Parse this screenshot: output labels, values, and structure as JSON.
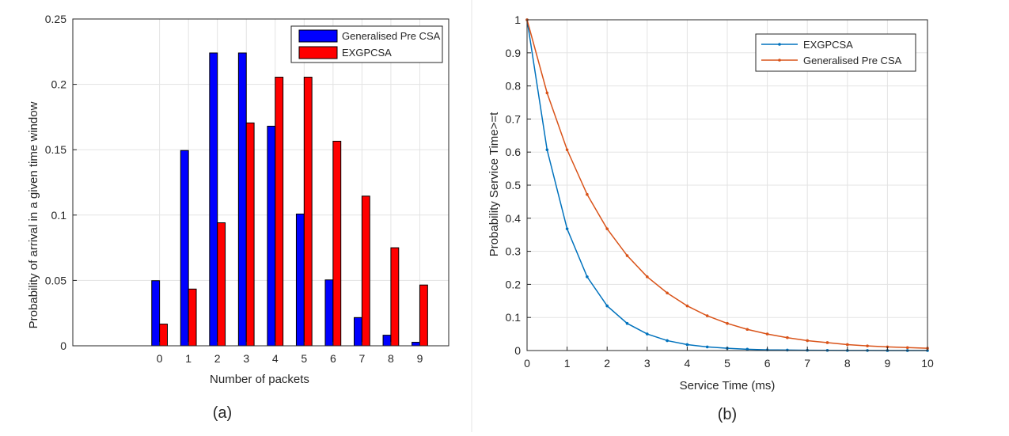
{
  "chart_data": [
    {
      "type": "bar",
      "panel_label": "(a)",
      "xlabel": "Number of packets",
      "ylabel": "Probability of arrival in a given time window",
      "categories": [
        "0",
        "1",
        "2",
        "3",
        "4",
        "5",
        "6",
        "7",
        "8",
        "9"
      ],
      "xlim": [
        -3,
        10
      ],
      "ylim": [
        0,
        0.25
      ],
      "yticks": [
        0,
        0.05,
        0.1,
        0.15,
        0.2,
        0.25
      ],
      "yticklabels": [
        "0",
        "0.05",
        "0.1",
        "0.15",
        "0.2",
        "0.25"
      ],
      "grid": true,
      "legend_position": "top-right",
      "series": [
        {
          "name": "Generalised Pre CSA",
          "color": "#0000ff",
          "values": [
            0.0498,
            0.1494,
            0.224,
            0.224,
            0.168,
            0.1008,
            0.0504,
            0.0216,
            0.0081,
            0.0027
          ]
        },
        {
          "name": "EXGPCSA",
          "color": "#ff0000",
          "values": [
            0.0166,
            0.0434,
            0.0941,
            0.1705,
            0.2055,
            0.2055,
            0.1565,
            0.1145,
            0.075,
            0.0465
          ]
        }
      ]
    },
    {
      "type": "line",
      "panel_label": "(b)",
      "xlabel": "Service Time (ms)",
      "ylabel": "Probability Service Time>=t",
      "xlim": [
        0,
        10
      ],
      "ylim": [
        0,
        1
      ],
      "xticks": [
        0,
        1,
        2,
        3,
        4,
        5,
        6,
        7,
        8,
        9,
        10
      ],
      "xticklabels": [
        "0",
        "1",
        "2",
        "3",
        "4",
        "5",
        "6",
        "7",
        "8",
        "9",
        "10"
      ],
      "yticks": [
        0,
        0.1,
        0.2,
        0.3,
        0.4,
        0.5,
        0.6,
        0.7,
        0.8,
        0.9,
        1
      ],
      "yticklabels": [
        "0",
        "0.1",
        "0.2",
        "0.3",
        "0.4",
        "0.5",
        "0.6",
        "0.7",
        "0.8",
        "0.9",
        "1"
      ],
      "grid": true,
      "legend_position": "top-right",
      "x": [
        0,
        0.5,
        1,
        1.5,
        2,
        2.5,
        3,
        3.5,
        4,
        4.5,
        5,
        5.5,
        6,
        6.5,
        7,
        7.5,
        8,
        8.5,
        9,
        9.5,
        10
      ],
      "series": [
        {
          "name": "EXGPCSA",
          "color": "#0072bd",
          "values": [
            1,
            0.607,
            0.368,
            0.223,
            0.135,
            0.082,
            0.05,
            0.03,
            0.018,
            0.011,
            0.007,
            0.004,
            0.002,
            0.0015,
            0.0009,
            0.0006,
            0.0003,
            0.0002,
            0.0001,
            0.0001,
            0.0
          ]
        },
        {
          "name": "Generalised Pre CSA",
          "color": "#d95319",
          "values": [
            1,
            0.779,
            0.607,
            0.472,
            0.368,
            0.287,
            0.223,
            0.174,
            0.135,
            0.105,
            0.082,
            0.064,
            0.05,
            0.039,
            0.03,
            0.024,
            0.018,
            0.014,
            0.011,
            0.009,
            0.007
          ]
        }
      ]
    }
  ]
}
